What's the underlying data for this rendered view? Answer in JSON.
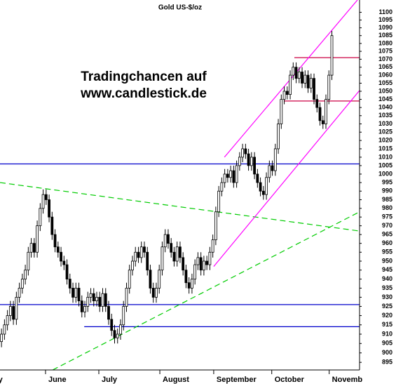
{
  "chart_data": {
    "type": "candlestick",
    "title": "Gold US-$/oz",
    "annotations": [
      "Tradingchancen auf",
      "www.candlestick.de"
    ],
    "log": true,
    "ylim": [
      891,
      1108
    ],
    "yticks": [
      895,
      900,
      905,
      910,
      915,
      920,
      925,
      930,
      935,
      940,
      945,
      950,
      955,
      960,
      965,
      970,
      975,
      980,
      985,
      990,
      995,
      1000,
      1005,
      1010,
      1015,
      1020,
      1025,
      1030,
      1035,
      1040,
      1045,
      1050,
      1055,
      1060,
      1065,
      1070,
      1075,
      1080,
      1085,
      1090,
      1095,
      1100
    ],
    "xlim": [
      -0.5,
      120.3
    ],
    "xticks": [
      {
        "value": -2,
        "label": "y"
      },
      {
        "value": 14.8,
        "label": "June"
      },
      {
        "value": 32.7,
        "label": "July"
      },
      {
        "value": 53.2,
        "label": "August"
      },
      {
        "value": 71.3,
        "label": "September"
      },
      {
        "value": 90.8,
        "label": "October"
      },
      {
        "value": 110.1,
        "label": "Novemb"
      }
    ],
    "up_color": "#ffffff",
    "down_color": "#000000",
    "open": [
      906,
      910,
      915,
      920,
      925,
      918,
      930,
      935,
      940,
      945,
      955,
      960,
      955,
      970,
      980,
      988,
      985,
      975,
      965,
      958,
      955,
      950,
      948,
      940,
      935,
      930,
      935,
      928,
      922,
      925,
      930,
      932,
      928,
      930,
      925,
      932,
      925,
      918,
      912,
      908,
      910,
      915,
      925,
      935,
      945,
      950,
      955,
      952,
      958,
      955,
      945,
      935,
      930,
      935,
      945,
      958,
      965,
      960,
      955,
      950,
      958,
      952,
      945,
      938,
      935,
      940,
      948,
      952,
      945,
      950,
      948,
      955,
      962,
      978,
      990,
      995,
      1000,
      998,
      1002,
      995,
      1005,
      1010,
      1015,
      1012,
      1005,
      1010,
      1000,
      995,
      990,
      988,
      998,
      1005,
      1002,
      1015,
      1030,
      1045,
      1050,
      1048,
      1060,
      1065,
      1058,
      1062,
      1055,
      1060,
      1052,
      1058,
      1045,
      1040,
      1032,
      1030,
      1045,
      1060
    ],
    "high": [
      913,
      918,
      923,
      928,
      928,
      933,
      938,
      943,
      948,
      958,
      963,
      963,
      973,
      983,
      991,
      991,
      988,
      978,
      968,
      961,
      958,
      953,
      951,
      943,
      938,
      938,
      938,
      931,
      928,
      933,
      935,
      935,
      933,
      933,
      935,
      935,
      928,
      921,
      915,
      913,
      918,
      928,
      938,
      948,
      953,
      958,
      958,
      961,
      961,
      958,
      948,
      938,
      938,
      948,
      961,
      968,
      968,
      963,
      958,
      961,
      961,
      955,
      948,
      941,
      943,
      951,
      955,
      955,
      953,
      953,
      958,
      965,
      981,
      993,
      998,
      1003,
      1003,
      1005,
      1005,
      1008,
      1013,
      1018,
      1018,
      1015,
      1013,
      1013,
      1003,
      998,
      993,
      1001,
      1008,
      1008,
      1018,
      1033,
      1048,
      1053,
      1053,
      1063,
      1068,
      1068,
      1065,
      1065,
      1063,
      1063,
      1061,
      1061,
      1048,
      1043,
      1035,
      1048,
      1063,
      1088
    ],
    "low": [
      903,
      907,
      912,
      917,
      915,
      915,
      927,
      932,
      937,
      942,
      952,
      952,
      952,
      967,
      977,
      982,
      972,
      962,
      955,
      952,
      947,
      945,
      937,
      932,
      927,
      927,
      925,
      919,
      919,
      922,
      927,
      925,
      925,
      922,
      922,
      922,
      915,
      909,
      905,
      905,
      907,
      912,
      922,
      932,
      942,
      947,
      949,
      949,
      952,
      942,
      932,
      927,
      927,
      932,
      942,
      955,
      957,
      952,
      947,
      947,
      949,
      942,
      935,
      932,
      932,
      937,
      945,
      942,
      942,
      945,
      945,
      952,
      959,
      975,
      987,
      992,
      995,
      995,
      992,
      992,
      1002,
      1007,
      1009,
      1002,
      1002,
      997,
      992,
      987,
      985,
      985,
      995,
      999,
      999,
      1012,
      1027,
      1042,
      1045,
      1045,
      1057,
      1055,
      1055,
      1052,
      1052,
      1049,
      1049,
      1042,
      1037,
      1029,
      1027,
      1027,
      1042,
      1057
    ],
    "close": [
      910,
      915,
      920,
      925,
      918,
      930,
      935,
      940,
      945,
      955,
      960,
      955,
      970,
      980,
      988,
      985,
      975,
      965,
      958,
      955,
      950,
      948,
      940,
      935,
      930,
      935,
      928,
      922,
      925,
      930,
      932,
      928,
      930,
      925,
      932,
      925,
      918,
      912,
      908,
      910,
      915,
      925,
      935,
      945,
      950,
      955,
      952,
      958,
      955,
      945,
      935,
      930,
      935,
      945,
      958,
      965,
      960,
      955,
      950,
      958,
      952,
      945,
      938,
      935,
      940,
      948,
      952,
      945,
      950,
      948,
      955,
      962,
      978,
      990,
      995,
      1000,
      998,
      1002,
      995,
      1005,
      1010,
      1015,
      1012,
      1005,
      1010,
      1000,
      995,
      990,
      988,
      998,
      1005,
      1002,
      1015,
      1030,
      1045,
      1050,
      1048,
      1060,
      1065,
      1058,
      1062,
      1055,
      1060,
      1052,
      1058,
      1045,
      1040,
      1032,
      1030,
      1045,
      1060,
      1085
    ],
    "lines": [
      {
        "color": "#0000cc",
        "style": "solid",
        "x": [
          -0.5,
          120.3
        ],
        "y": [
          1006,
          1006
        ]
      },
      {
        "color": "#0000cc",
        "style": "solid",
        "x": [
          -0.5,
          120.3
        ],
        "y": [
          926,
          926
        ]
      },
      {
        "color": "#0000cc",
        "style": "solid",
        "x": [
          27.8,
          120.3
        ],
        "y": [
          914,
          914
        ]
      },
      {
        "color": "#cc0044",
        "style": "solid",
        "x": [
          98.4,
          120.3
        ],
        "y": [
          1071,
          1071
        ]
      },
      {
        "color": "#cc0044",
        "style": "solid",
        "x": [
          94.9,
          120.3
        ],
        "y": [
          1044,
          1044
        ]
      },
      {
        "color": "#00cc00",
        "style": "dashed",
        "x": [
          -0.5,
          120.3
        ],
        "y": [
          995,
          967
        ]
      },
      {
        "color": "#00cc00",
        "style": "dashed",
        "x": [
          17.2,
          120.3
        ],
        "y": [
          891,
          978
        ]
      },
      {
        "color": "#ff00ff",
        "style": "solid",
        "x": [
          74.9,
          119.6
        ],
        "y": [
          1010,
          1108
        ]
      },
      {
        "color": "#ff00ff",
        "style": "solid",
        "x": [
          71.3,
          120.3
        ],
        "y": [
          947,
          1050.5
        ]
      }
    ]
  }
}
